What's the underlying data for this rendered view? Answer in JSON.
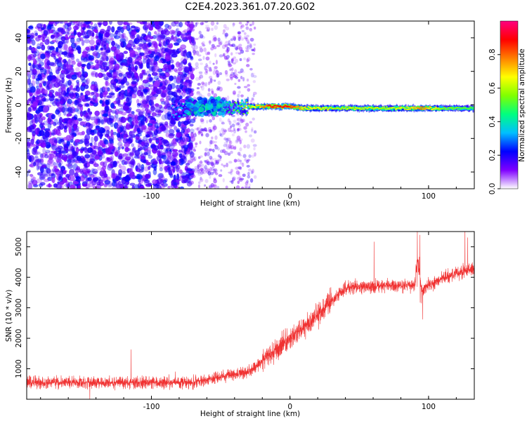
{
  "figure_title": "C2E4.2023.361.07.20.G02",
  "colors": {
    "snr_line": "#f03232",
    "noise": "#7f00ff",
    "signal_core": "#ff0000",
    "axes": "#000000"
  },
  "colorbar": {
    "label": "Normalized spectral amplitude",
    "range": [
      0.0,
      1.0
    ],
    "ticks": [
      0.0,
      0.2,
      0.4,
      0.6,
      0.8
    ],
    "tick_labels": [
      "0.0",
      "0.2",
      "0.4",
      "0.6",
      "0.8"
    ],
    "colormap": [
      "#ffffff",
      "#7f00ff",
      "#0000ff",
      "#00bfff",
      "#00ff80",
      "#80ff00",
      "#ffff00",
      "#ff8000",
      "#ff0000",
      "#ff0080"
    ]
  },
  "chart_data": [
    {
      "type": "heatmap",
      "title": "",
      "xlabel": "Height of straight line (km)",
      "ylabel": "Frequency (Hz)",
      "xlim": [
        -190,
        133
      ],
      "ylim": [
        -50,
        50
      ],
      "xticks": [
        -100,
        0,
        100
      ],
      "xtick_labels": [
        "-100",
        "0",
        "100"
      ],
      "yticks": [
        -40,
        -20,
        0,
        20,
        40
      ],
      "ytick_labels": [
        "-40",
        "-20",
        "0",
        "20",
        "40"
      ],
      "noise_region": {
        "dense_until_km": -70,
        "sparse_until_km": -25
      },
      "ridge": {
        "description": "spectral line near 0 Hz",
        "x": [
          -85,
          -70,
          -55,
          -40,
          -30,
          -20,
          -10,
          0,
          10,
          30,
          50,
          70,
          85,
          95,
          110,
          133
        ],
        "frequency_hz": [
          -4,
          -2,
          -1,
          -2,
          -1,
          -1,
          -1,
          -1,
          -2,
          -2,
          -2,
          -2,
          -2,
          -2,
          -2,
          -2
        ],
        "amplitude": [
          0.3,
          0.4,
          0.4,
          0.5,
          0.6,
          0.75,
          0.9,
          0.85,
          0.7,
          0.6,
          0.6,
          0.6,
          0.65,
          0.8,
          0.55,
          0.5
        ]
      }
    },
    {
      "type": "line",
      "title": "",
      "xlabel": "Height of straight line (km)",
      "ylabel": "SNR (10 * v/v)",
      "xlim": [
        -190,
        133
      ],
      "ylim": [
        0,
        5500
      ],
      "xticks": [
        -100,
        0,
        100
      ],
      "xtick_labels": [
        "-100",
        "0",
        "100"
      ],
      "yticks": [
        1000,
        2000,
        3000,
        4000,
        5000
      ],
      "ytick_labels": [
        "1000",
        "2000",
        "3000",
        "4000",
        "5000"
      ],
      "series": [
        {
          "name": "SNR",
          "x": [
            -190,
            -150,
            -100,
            -70,
            -55,
            -40,
            -30,
            -20,
            -10,
            0,
            10,
            20,
            30,
            40,
            60,
            80,
            90,
            92,
            95,
            100,
            110,
            120,
            133
          ],
          "y": [
            550,
            550,
            550,
            560,
            700,
            800,
            900,
            1250,
            1650,
            2000,
            2350,
            2750,
            3250,
            3650,
            3700,
            3750,
            3750,
            4600,
            3600,
            3750,
            3950,
            4150,
            4300
          ]
        }
      ]
    }
  ]
}
